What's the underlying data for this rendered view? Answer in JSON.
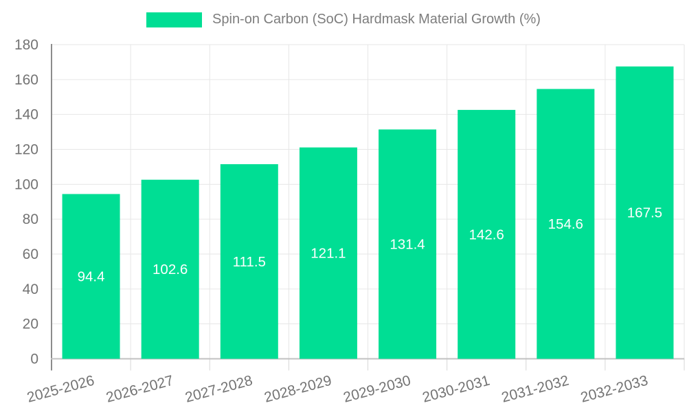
{
  "chart_data": {
    "type": "bar",
    "title": "Spin-on Carbon (SoC) Hardmask Material Growth (%)",
    "legend": {
      "position": "top",
      "entries": [
        "Spin-on Carbon (SoC) Hardmask Material Growth (%)"
      ]
    },
    "categories": [
      "2025-2026",
      "2026-2027",
      "2027-2028",
      "2028-2029",
      "2029-2030",
      "2030-2031",
      "2031-2032",
      "2032-2033"
    ],
    "series": [
      {
        "name": "Spin-on Carbon (SoC) Hardmask Material Growth (%)",
        "values": [
          94.4,
          102.6,
          111.5,
          121.1,
          131.4,
          142.6,
          154.6,
          167.5
        ]
      }
    ],
    "value_labels": [
      "94.4",
      "102.6",
      "111.5",
      "121.1",
      "131.4",
      "142.6",
      "154.6",
      "167.5"
    ],
    "xlabel": "",
    "ylabel": "",
    "ylim": [
      0,
      180
    ],
    "ytick_step": 20,
    "yticks": [
      0,
      20,
      40,
      60,
      80,
      100,
      120,
      140,
      160,
      180
    ],
    "grid": true,
    "x_label_rotation_deg": -15,
    "colors": {
      "bar": "#00DE94",
      "bar_value_text": "#FFFFFF",
      "axis_text": "#737373",
      "legend_text": "#7D7D7D",
      "gridline": "#E6E6E6",
      "tick": "#D6D6D6",
      "x_axis_line": "#C0C0C0",
      "y_axis_line": "#8C8C8C",
      "background": "#FFFFFF"
    }
  }
}
